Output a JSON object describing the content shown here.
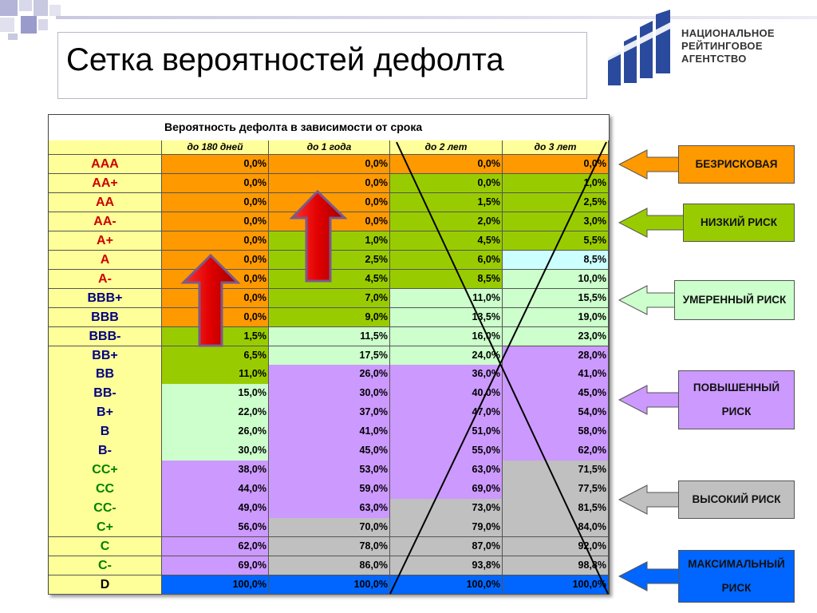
{
  "slide": {
    "title": "Сетка вероятностей дефолта"
  },
  "logo": {
    "lines": [
      "НАЦИОНАЛЬНОЕ",
      "РЕЙТИНГОВОЕ",
      "АГЕНТСТВО"
    ]
  },
  "colors": {
    "orange": "#ff9900",
    "green": "#99cc00",
    "light_green": "#ccffcc",
    "light_cyan": "#ccffff",
    "purple": "#cc99ff",
    "gray": "#c0c0c0",
    "blue": "#0066ff",
    "header_yellow": "#ffff99",
    "rate_red": "#cc0000",
    "rate_navy": "#000080",
    "rate_green": "#008000"
  },
  "table": {
    "header": "Вероятность дефолта в зависимости от срока",
    "columns": [
      "до 180 дней",
      "до 1 года",
      "до 2 лет",
      "до 3 лет"
    ],
    "rows": [
      {
        "rating": "AAA",
        "rating_color": "rate_red",
        "values": [
          "0,0%",
          "0,0%",
          "0,0%",
          "0,0%"
        ],
        "fills": [
          "orange",
          "orange",
          "orange",
          "orange"
        ]
      },
      {
        "rating": "AA+",
        "rating_color": "rate_red",
        "values": [
          "0,0%",
          "0,0%",
          "0,0%",
          "1,0%"
        ],
        "fills": [
          "orange",
          "orange",
          "green",
          "green"
        ]
      },
      {
        "rating": "AA",
        "rating_color": "rate_red",
        "values": [
          "0,0%",
          "0,0%",
          "1,5%",
          "2,5%"
        ],
        "fills": [
          "orange",
          "orange",
          "green",
          "green"
        ]
      },
      {
        "rating": "AA-",
        "rating_color": "rate_red",
        "values": [
          "0,0%",
          "0,0%",
          "2,0%",
          "3,0%"
        ],
        "fills": [
          "orange",
          "orange",
          "green",
          "green"
        ]
      },
      {
        "rating": "A+",
        "rating_color": "rate_red",
        "values": [
          "0,0%",
          "1,0%",
          "4,5%",
          "5,5%"
        ],
        "fills": [
          "orange",
          "green",
          "green",
          "green"
        ]
      },
      {
        "rating": "A",
        "rating_color": "rate_red",
        "values": [
          "0,0%",
          "2,5%",
          "6,0%",
          "8,5%"
        ],
        "fills": [
          "orange",
          "green",
          "green",
          "light_cyan"
        ]
      },
      {
        "rating": "A-",
        "rating_color": "rate_red",
        "values": [
          "0,0%",
          "4,5%",
          "8,5%",
          "10,0%"
        ],
        "fills": [
          "orange",
          "green",
          "green",
          "light_green"
        ]
      },
      {
        "rating": "BBB+",
        "rating_color": "rate_navy",
        "values": [
          "0,0%",
          "7,0%",
          "11,0%",
          "15,5%"
        ],
        "fills": [
          "orange",
          "green",
          "light_green",
          "light_green"
        ]
      },
      {
        "rating": "BBB",
        "rating_color": "rate_navy",
        "values": [
          "0,0%",
          "9,0%",
          "13,5%",
          "19,0%"
        ],
        "fills": [
          "orange",
          "green",
          "light_green",
          "light_green"
        ]
      },
      {
        "rating": "BBB-",
        "rating_color": "rate_navy",
        "values": [
          "1,5%",
          "11,5%",
          "16,0%",
          "23,0%"
        ],
        "fills": [
          "green",
          "light_green",
          "light_green",
          "light_green"
        ]
      },
      {
        "rating": "BB+",
        "rating_color": "rate_navy",
        "values": [
          "6,5%",
          "17,5%",
          "24,0%",
          "28,0%"
        ],
        "fills": [
          "green",
          "light_green",
          "light_green",
          "purple"
        ]
      },
      {
        "rating": "BB",
        "rating_color": "rate_navy",
        "values": [
          "11,0%",
          "26,0%",
          "36,0%",
          "41,0%"
        ],
        "fills": [
          "green",
          "purple",
          "purple",
          "purple"
        ]
      },
      {
        "rating": "BB-",
        "rating_color": "rate_navy",
        "values": [
          "15,0%",
          "30,0%",
          "40,0%",
          "45,0%"
        ],
        "fills": [
          "light_green",
          "purple",
          "purple",
          "purple"
        ]
      },
      {
        "rating": "B+",
        "rating_color": "rate_navy",
        "values": [
          "22,0%",
          "37,0%",
          "47,0%",
          "54,0%"
        ],
        "fills": [
          "light_green",
          "purple",
          "purple",
          "purple"
        ]
      },
      {
        "rating": "B",
        "rating_color": "rate_navy",
        "values": [
          "26,0%",
          "41,0%",
          "51,0%",
          "58,0%"
        ],
        "fills": [
          "light_green",
          "purple",
          "purple",
          "purple"
        ]
      },
      {
        "rating": "B-",
        "rating_color": "rate_navy",
        "values": [
          "30,0%",
          "45,0%",
          "55,0%",
          "62,0%"
        ],
        "fills": [
          "light_green",
          "purple",
          "purple",
          "purple"
        ]
      },
      {
        "rating": "CC+",
        "rating_color": "rate_green",
        "values": [
          "38,0%",
          "53,0%",
          "63,0%",
          "71,5%"
        ],
        "fills": [
          "purple",
          "purple",
          "purple",
          "gray"
        ]
      },
      {
        "rating": "CC",
        "rating_color": "rate_green",
        "values": [
          "44,0%",
          "59,0%",
          "69,0%",
          "77,5%"
        ],
        "fills": [
          "purple",
          "purple",
          "purple",
          "gray"
        ]
      },
      {
        "rating": "CC-",
        "rating_color": "rate_green",
        "values": [
          "49,0%",
          "63,0%",
          "73,0%",
          "81,5%"
        ],
        "fills": [
          "purple",
          "purple",
          "gray",
          "gray"
        ]
      },
      {
        "rating": "C+",
        "rating_color": "rate_green",
        "values": [
          "56,0%",
          "70,0%",
          "79,0%",
          "84,0%"
        ],
        "fills": [
          "purple",
          "gray",
          "gray",
          "gray"
        ]
      },
      {
        "rating": "C",
        "rating_color": "rate_green",
        "values": [
          "62,0%",
          "78,0%",
          "87,0%",
          "92,0%"
        ],
        "fills": [
          "purple",
          "gray",
          "gray",
          "gray"
        ]
      },
      {
        "rating": "C-",
        "rating_color": "rate_green",
        "values": [
          "69,0%",
          "86,0%",
          "93,8%",
          "98,8%"
        ],
        "fills": [
          "purple",
          "gray",
          "gray",
          "gray"
        ]
      },
      {
        "rating": "D",
        "rating_color": "black",
        "values": [
          "100,0%",
          "100,0%",
          "100,0%",
          "100,0%"
        ],
        "fills": [
          "blue",
          "blue",
          "blue",
          "blue"
        ]
      }
    ]
  },
  "legend": [
    {
      "label": "БЕЗРИСКОВАЯ",
      "fill": "orange"
    },
    {
      "label": "НИЗКИЙ РИСК",
      "fill": "green"
    },
    {
      "label": "УМЕРЕННЫЙ РИСК",
      "fill": "light_green"
    },
    {
      "label": "ПОВЫШЕННЫЙ РИСК",
      "fill": "purple"
    },
    {
      "label": "ВЫСОКИЙ РИСК",
      "fill": "gray"
    },
    {
      "label": "МАКСИМАЛЬНЫЙ РИСК",
      "fill": "blue"
    }
  ]
}
